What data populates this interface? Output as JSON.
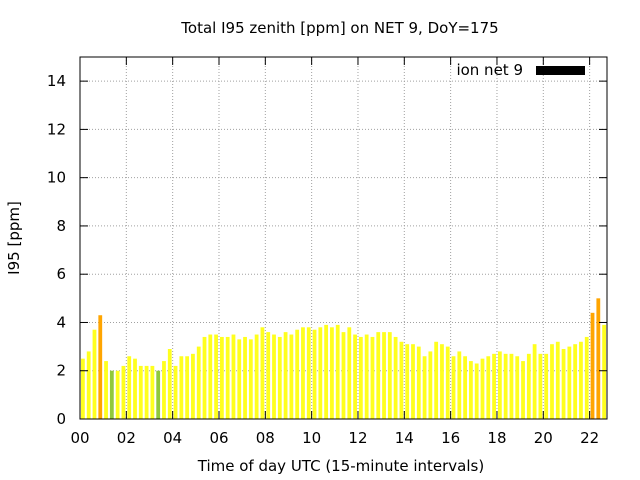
{
  "chart_data": {
    "type": "bar",
    "title": "Total I95 zenith [ppm] on NET 9, DoY=175",
    "xlabel": "Time of day UTC (15-minute intervals)",
    "ylabel": "I95 [ppm]",
    "xlim": [
      0,
      22.75
    ],
    "ylim": [
      0,
      15
    ],
    "x_ticks": [
      "00",
      "02",
      "04",
      "06",
      "08",
      "10",
      "12",
      "14",
      "16",
      "18",
      "20",
      "22"
    ],
    "y_ticks": [
      "0",
      "2",
      "4",
      "6",
      "8",
      "10",
      "12",
      "14"
    ],
    "grid": true,
    "legend": {
      "position": "top-right",
      "entries": [
        {
          "label": "ion net 9",
          "color": "#000000"
        }
      ]
    },
    "bar_interval_hours": 0.25,
    "colors": {
      "low": "#90c83c",
      "normal": "#ffff1e",
      "elevated": "#ffa500"
    },
    "values": [
      2.5,
      2.8,
      3.7,
      4.3,
      2.4,
      2.0,
      2.0,
      2.2,
      2.6,
      2.5,
      2.2,
      2.2,
      2.2,
      2.0,
      2.4,
      2.9,
      2.2,
      2.6,
      2.6,
      2.7,
      3.0,
      3.4,
      3.5,
      3.5,
      3.4,
      3.4,
      3.5,
      3.3,
      3.4,
      3.3,
      3.5,
      3.8,
      3.6,
      3.5,
      3.4,
      3.6,
      3.5,
      3.7,
      3.8,
      3.8,
      3.7,
      3.8,
      3.9,
      3.8,
      3.9,
      3.6,
      3.8,
      3.5,
      3.4,
      3.5,
      3.4,
      3.6,
      3.6,
      3.6,
      3.4,
      3.2,
      3.1,
      3.1,
      3.0,
      2.6,
      2.8,
      3.2,
      3.1,
      3.0,
      2.6,
      2.8,
      2.6,
      2.4,
      2.3,
      2.5,
      2.6,
      2.7,
      2.8,
      2.7,
      2.7,
      2.6,
      2.4,
      2.7,
      3.1,
      2.7,
      2.7,
      3.1,
      3.2,
      2.9,
      3.0,
      3.1,
      3.2,
      3.4,
      4.4,
      5.0,
      3.9
    ],
    "levels": [
      "normal",
      "normal",
      "normal",
      "elevated",
      "normal",
      "low",
      "normal",
      "normal",
      "normal",
      "normal",
      "normal",
      "normal",
      "normal",
      "low",
      "normal",
      "normal",
      "normal",
      "normal",
      "normal",
      "normal",
      "normal",
      "normal",
      "normal",
      "normal",
      "normal",
      "normal",
      "normal",
      "normal",
      "normal",
      "normal",
      "normal",
      "normal",
      "normal",
      "normal",
      "normal",
      "normal",
      "normal",
      "normal",
      "normal",
      "normal",
      "normal",
      "normal",
      "normal",
      "normal",
      "normal",
      "normal",
      "normal",
      "normal",
      "normal",
      "normal",
      "normal",
      "normal",
      "normal",
      "normal",
      "normal",
      "normal",
      "normal",
      "normal",
      "normal",
      "normal",
      "normal",
      "normal",
      "normal",
      "normal",
      "normal",
      "normal",
      "normal",
      "normal",
      "normal",
      "normal",
      "normal",
      "normal",
      "normal",
      "normal",
      "normal",
      "normal",
      "normal",
      "normal",
      "normal",
      "normal",
      "normal",
      "normal",
      "normal",
      "normal",
      "normal",
      "normal",
      "normal",
      "normal",
      "elevated",
      "elevated",
      "normal"
    ]
  }
}
